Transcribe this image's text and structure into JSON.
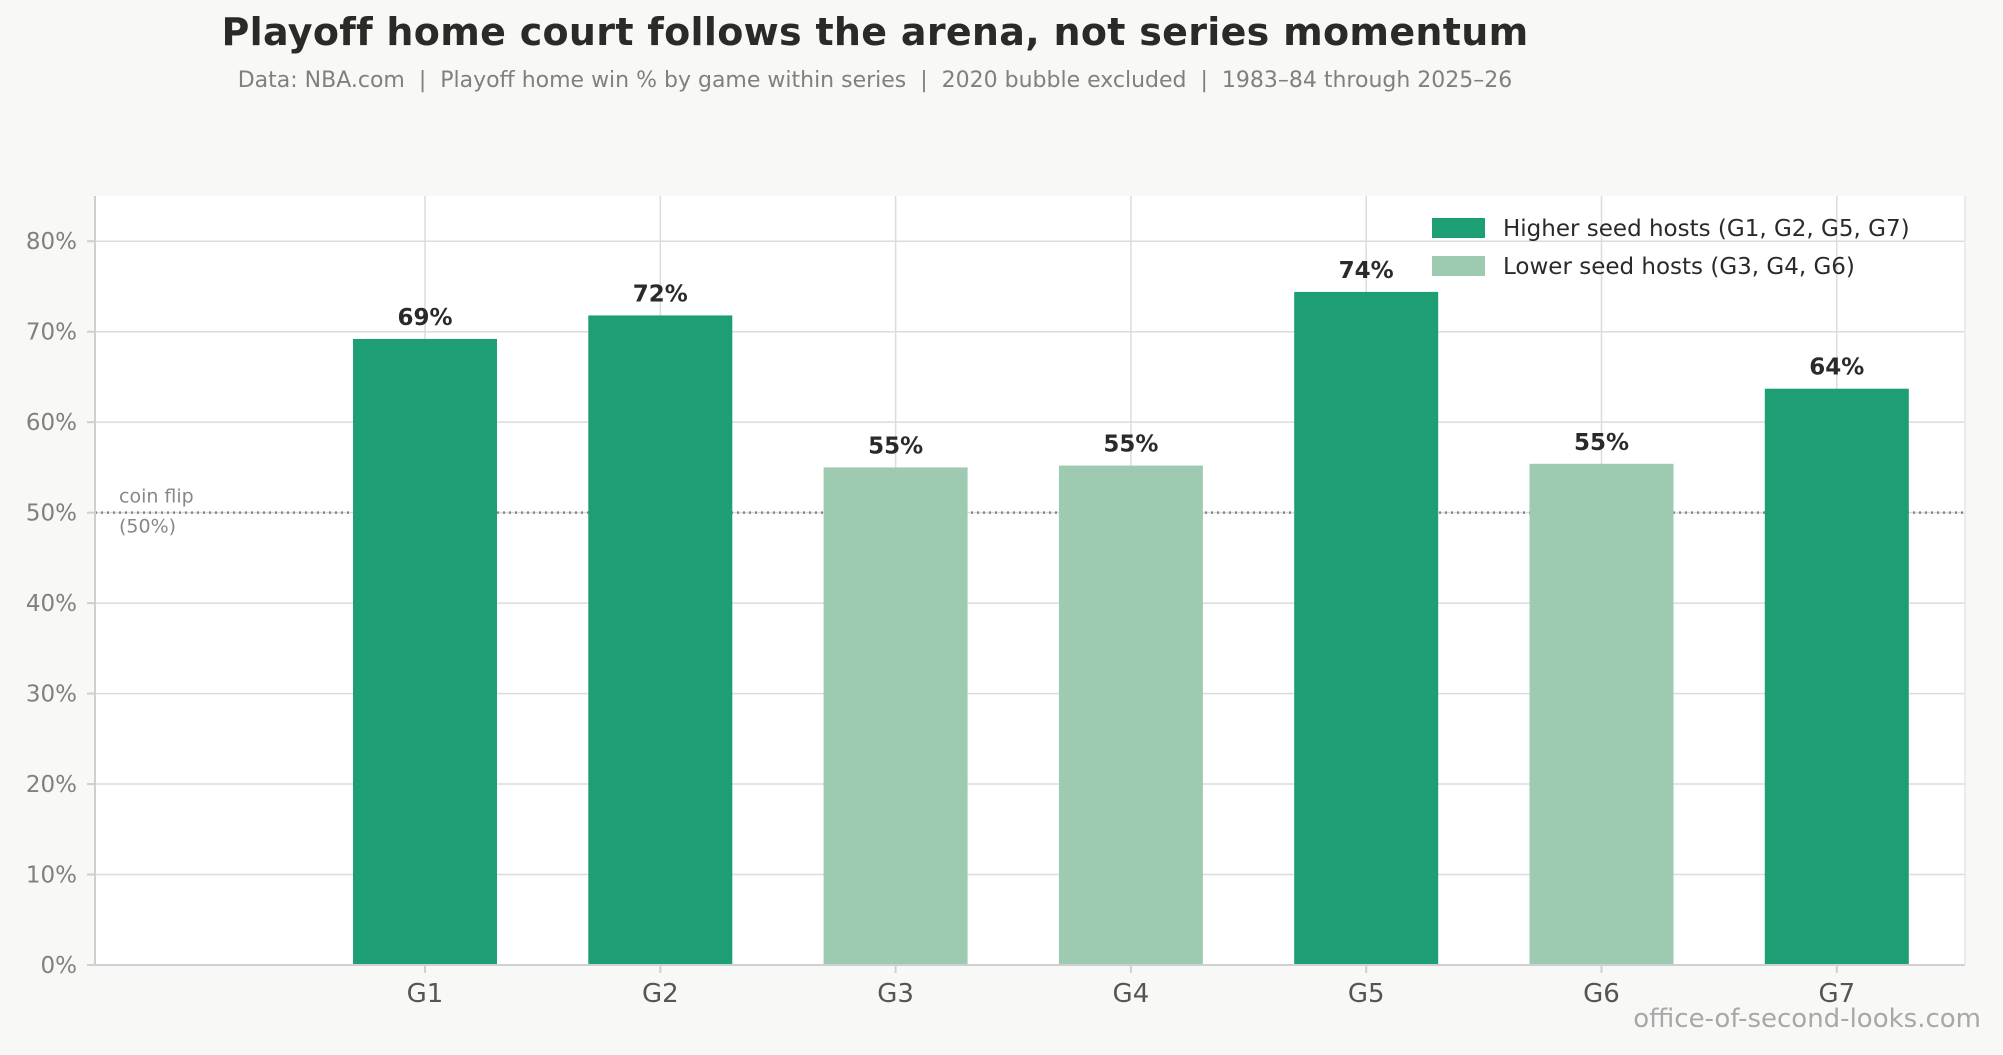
{
  "chart_data": {
    "type": "bar",
    "title": "Playoff home court follows the arena, not series momentum",
    "subtitle": "Data: NBA.com  |  Playoff home win % by game within series  |  2020 bubble excluded  |  1983–84 through 2025–26",
    "categories": [
      "G1",
      "G2",
      "G3",
      "G4",
      "G5",
      "G6",
      "G7"
    ],
    "values": [
      69.2,
      71.8,
      55.0,
      55.2,
      74.4,
      55.4,
      63.7
    ],
    "value_labels": [
      "69%",
      "72%",
      "55%",
      "55%",
      "74%",
      "55%",
      "64%"
    ],
    "hosts": [
      "higher",
      "higher",
      "lower",
      "lower",
      "higher",
      "lower",
      "higher"
    ],
    "series": [
      {
        "name": "Higher seed hosts (G1, G2, G5, G7)",
        "color": "#1e9e74"
      },
      {
        "name": "Lower seed hosts (G3, G4, G6)",
        "color": "#9ecab2"
      }
    ],
    "ylim": [
      0,
      85
    ],
    "yticks": [
      0,
      10,
      20,
      30,
      40,
      50,
      60,
      70,
      80
    ],
    "ytick_labels": [
      "0%",
      "10%",
      "20%",
      "30%",
      "40%",
      "50%",
      "60%",
      "70%",
      "80%"
    ],
    "reference_line": {
      "value": 50,
      "label_line1": "coin flip",
      "label_line2": "(50%)"
    },
    "grid": true,
    "legend_position": "top-right",
    "xlabel": "",
    "ylabel": ""
  },
  "watermark": "office-of-second-looks.com"
}
